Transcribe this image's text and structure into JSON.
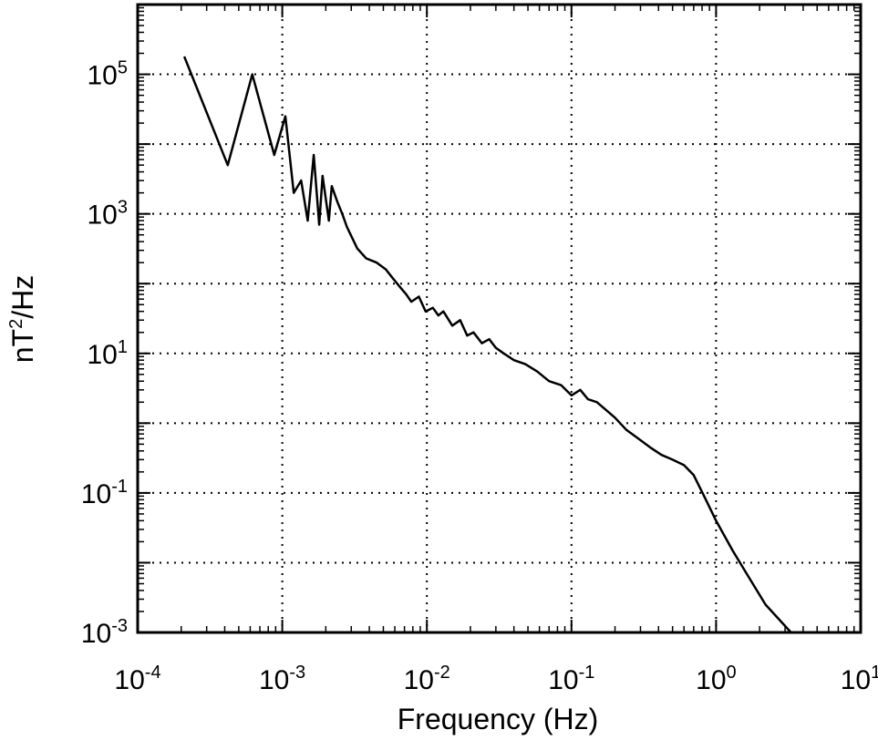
{
  "chart_data": {
    "type": "line",
    "xlabel": "Frequency (Hz)",
    "ylabel_base": "nT",
    "ylabel_exp": "2",
    "ylabel_tail": "/Hz",
    "x_scale": "log",
    "y_scale": "log",
    "xlim": [
      0.0001,
      10
    ],
    "ylim": [
      0.001,
      1000000
    ],
    "grid": true,
    "x_ticks": [
      {
        "base": "10",
        "exp": "-4",
        "value": 0.0001
      },
      {
        "base": "10",
        "exp": "-3",
        "value": 0.001
      },
      {
        "base": "10",
        "exp": "-2",
        "value": 0.01
      },
      {
        "base": "10",
        "exp": "-1",
        "value": 0.1
      },
      {
        "base": "10",
        "exp": "0",
        "value": 1
      },
      {
        "base": "10",
        "exp": "1",
        "value": 10
      }
    ],
    "y_ticks": [
      {
        "base": "10",
        "exp": "5",
        "value": 100000
      },
      {
        "base": "10",
        "exp": "3",
        "value": 1000
      },
      {
        "base": "10",
        "exp": "1",
        "value": 10
      },
      {
        "base": "10",
        "exp": "-1",
        "value": 0.1
      },
      {
        "base": "10",
        "exp": "-3",
        "value": 0.001
      }
    ],
    "series": [
      {
        "x": [
          0.00021,
          0.00042,
          0.00062,
          0.00088,
          0.00105,
          0.0012,
          0.00135,
          0.0015,
          0.00165,
          0.0018,
          0.0019,
          0.0021,
          0.0022,
          0.0024,
          0.0026,
          0.0028,
          0.0033,
          0.0038,
          0.0045,
          0.0052,
          0.0058,
          0.0065,
          0.0072,
          0.0078,
          0.0088,
          0.0098,
          0.011,
          0.012,
          0.013,
          0.015,
          0.017,
          0.019,
          0.021,
          0.024,
          0.027,
          0.03,
          0.034,
          0.04,
          0.048,
          0.058,
          0.07,
          0.085,
          0.1,
          0.115,
          0.13,
          0.15,
          0.17,
          0.2,
          0.24,
          0.29,
          0.35,
          0.42,
          0.5,
          0.6,
          0.7,
          0.85,
          1.0,
          1.3,
          1.7,
          2.2,
          3.3
        ],
        "y": [
          180000,
          5000,
          100000,
          7000,
          25000,
          2000,
          3000,
          800,
          7000,
          700,
          3500,
          800,
          2500,
          1500,
          1000,
          650,
          320,
          230,
          200,
          160,
          120,
          90,
          70,
          55,
          65,
          40,
          45,
          35,
          40,
          25,
          30,
          18,
          20,
          14,
          16,
          12,
          10,
          8,
          7,
          5.5,
          4,
          3.5,
          2.5,
          3,
          2.2,
          2,
          1.6,
          1.2,
          0.8,
          0.6,
          0.45,
          0.35,
          0.3,
          0.25,
          0.18,
          0.08,
          0.04,
          0.015,
          0.006,
          0.0025,
          0.001
        ]
      }
    ]
  }
}
